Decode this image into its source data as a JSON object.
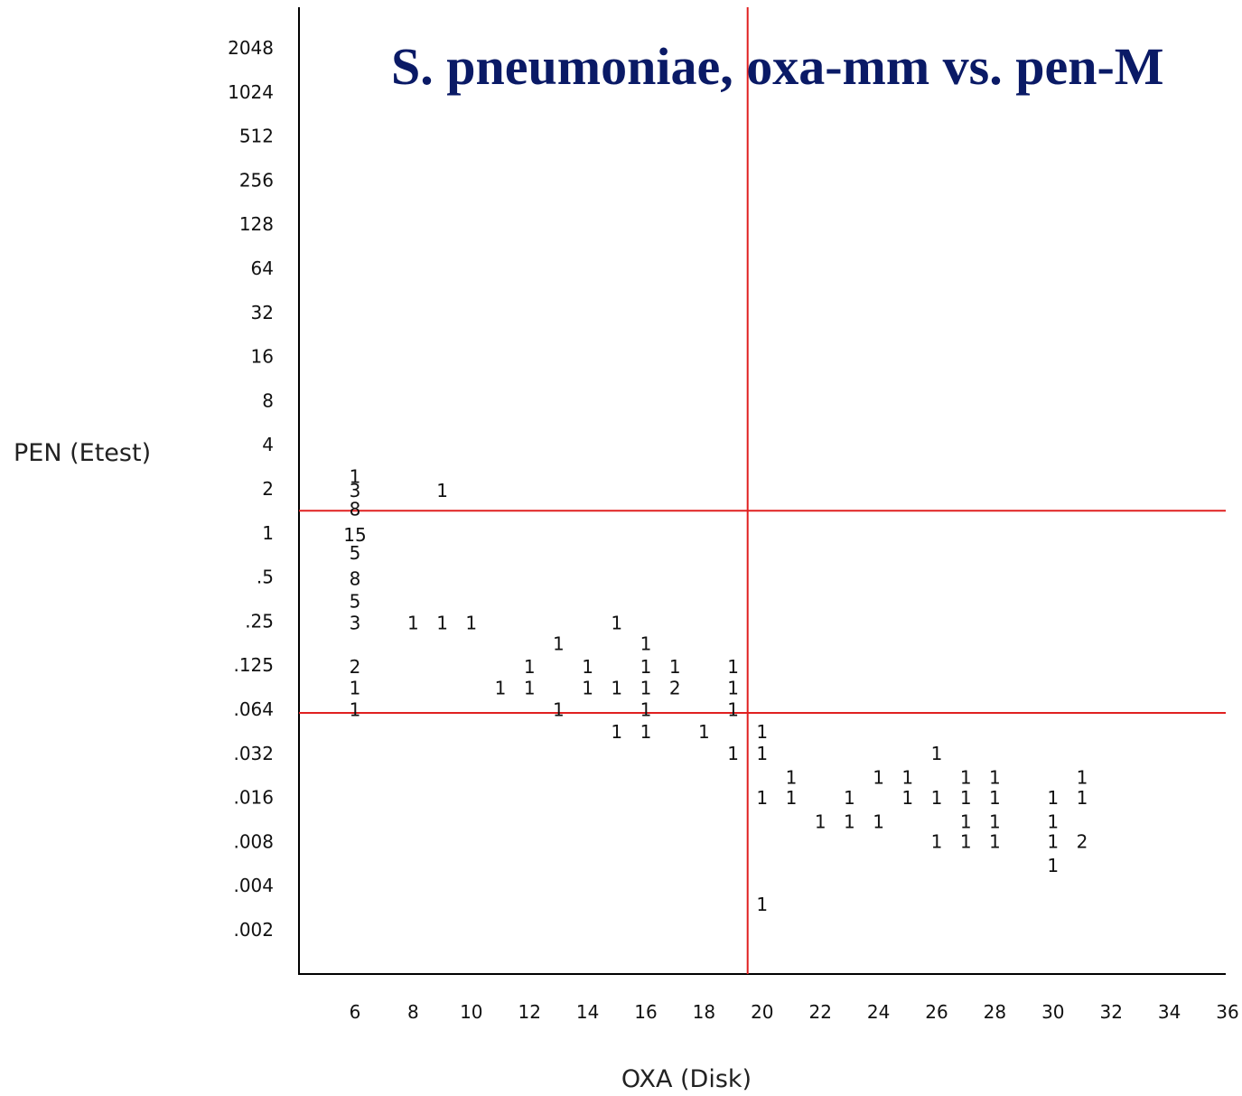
{
  "chart_data": {
    "type": "table",
    "title": "S. pneumoniae, oxa-mm vs. pen-M",
    "xlabel": "OXA (Disk)",
    "ylabel": "PEN (Etest)",
    "x_ticks": [
      "6",
      "8",
      "10",
      "12",
      "14",
      "16",
      "18",
      "20",
      "22",
      "24",
      "26",
      "28",
      "30",
      "32",
      "34",
      "36"
    ],
    "y_ticks": [
      "2048",
      "1024",
      "512",
      "256",
      "128",
      "64",
      "32",
      "16",
      "8",
      "4",
      "2",
      "1",
      ".5",
      ".25",
      ".125",
      ".064",
      ".032",
      ".016",
      ".008",
      ".004",
      ".002"
    ],
    "xlim": [
      4,
      36
    ],
    "breakpoints": {
      "oxa_disk": 19.5,
      "pen_mic": [
        1.5,
        0.0625
      ]
    },
    "line_color": "#e02020",
    "title_color": "#0a1a66",
    "cells": [
      {
        "x": 6,
        "y": 2.5,
        "count": "1"
      },
      {
        "x": 6,
        "y": 2,
        "count": "3"
      },
      {
        "x": 6,
        "y": 1.5,
        "count": "8"
      },
      {
        "x": 6,
        "y": 1,
        "count": "15"
      },
      {
        "x": 6,
        "y": 0.75,
        "count": "5"
      },
      {
        "x": 6,
        "y": 0.5,
        "count": "8"
      },
      {
        "x": 6,
        "y": 0.35,
        "count": "5"
      },
      {
        "x": 6,
        "y": 0.25,
        "count": "3"
      },
      {
        "x": 6,
        "y": 0.125,
        "count": "2"
      },
      {
        "x": 6,
        "y": 0.09,
        "count": "1"
      },
      {
        "x": 6,
        "y": 0.064,
        "count": "1"
      },
      {
        "x": 8,
        "y": 0.25,
        "count": "1"
      },
      {
        "x": 9,
        "y": 2,
        "count": "1"
      },
      {
        "x": 9,
        "y": 0.25,
        "count": "1"
      },
      {
        "x": 10,
        "y": 0.25,
        "count": "1"
      },
      {
        "x": 11,
        "y": 0.09,
        "count": "1"
      },
      {
        "x": 12,
        "y": 0.125,
        "count": "1"
      },
      {
        "x": 12,
        "y": 0.09,
        "count": "1"
      },
      {
        "x": 13,
        "y": 0.18,
        "count": "1"
      },
      {
        "x": 13,
        "y": 0.064,
        "count": "1"
      },
      {
        "x": 14,
        "y": 0.125,
        "count": "1"
      },
      {
        "x": 14,
        "y": 0.09,
        "count": "1"
      },
      {
        "x": 15,
        "y": 0.25,
        "count": "1"
      },
      {
        "x": 15,
        "y": 0.09,
        "count": "1"
      },
      {
        "x": 15,
        "y": 0.045,
        "count": "1"
      },
      {
        "x": 16,
        "y": 0.18,
        "count": "1"
      },
      {
        "x": 16,
        "y": 0.125,
        "count": "1"
      },
      {
        "x": 16,
        "y": 0.09,
        "count": "1"
      },
      {
        "x": 16,
        "y": 0.064,
        "count": "1"
      },
      {
        "x": 16,
        "y": 0.045,
        "count": "1"
      },
      {
        "x": 17,
        "y": 0.125,
        "count": "1"
      },
      {
        "x": 17,
        "y": 0.09,
        "count": "2"
      },
      {
        "x": 18,
        "y": 0.045,
        "count": "1"
      },
      {
        "x": 19,
        "y": 0.125,
        "count": "1"
      },
      {
        "x": 19,
        "y": 0.09,
        "count": "1"
      },
      {
        "x": 19,
        "y": 0.064,
        "count": "1"
      },
      {
        "x": 19,
        "y": 0.032,
        "count": "1"
      },
      {
        "x": 20,
        "y": 0.045,
        "count": "1"
      },
      {
        "x": 20,
        "y": 0.032,
        "count": "1"
      },
      {
        "x": 20,
        "y": 0.016,
        "count": "1"
      },
      {
        "x": 20,
        "y": 0.003,
        "count": "1"
      },
      {
        "x": 21,
        "y": 0.022,
        "count": "1"
      },
      {
        "x": 21,
        "y": 0.016,
        "count": "1"
      },
      {
        "x": 22,
        "y": 0.011,
        "count": "1"
      },
      {
        "x": 23,
        "y": 0.016,
        "count": "1"
      },
      {
        "x": 23,
        "y": 0.011,
        "count": "1"
      },
      {
        "x": 24,
        "y": 0.022,
        "count": "1"
      },
      {
        "x": 24,
        "y": 0.011,
        "count": "1"
      },
      {
        "x": 25,
        "y": 0.022,
        "count": "1"
      },
      {
        "x": 25,
        "y": 0.016,
        "count": "1"
      },
      {
        "x": 26,
        "y": 0.032,
        "count": "1"
      },
      {
        "x": 26,
        "y": 0.016,
        "count": "1"
      },
      {
        "x": 26,
        "y": 0.008,
        "count": "1"
      },
      {
        "x": 27,
        "y": 0.022,
        "count": "1"
      },
      {
        "x": 27,
        "y": 0.016,
        "count": "1"
      },
      {
        "x": 27,
        "y": 0.011,
        "count": "1"
      },
      {
        "x": 27,
        "y": 0.008,
        "count": "1"
      },
      {
        "x": 28,
        "y": 0.022,
        "count": "1"
      },
      {
        "x": 28,
        "y": 0.016,
        "count": "1"
      },
      {
        "x": 28,
        "y": 0.011,
        "count": "1"
      },
      {
        "x": 28,
        "y": 0.008,
        "count": "1"
      },
      {
        "x": 30,
        "y": 0.016,
        "count": "1"
      },
      {
        "x": 30,
        "y": 0.011,
        "count": "1"
      },
      {
        "x": 30,
        "y": 0.008,
        "count": "1"
      },
      {
        "x": 30,
        "y": 0.0055,
        "count": "1"
      },
      {
        "x": 31,
        "y": 0.022,
        "count": "1"
      },
      {
        "x": 31,
        "y": 0.016,
        "count": "1"
      },
      {
        "x": 31,
        "y": 0.008,
        "count": "2"
      }
    ]
  }
}
